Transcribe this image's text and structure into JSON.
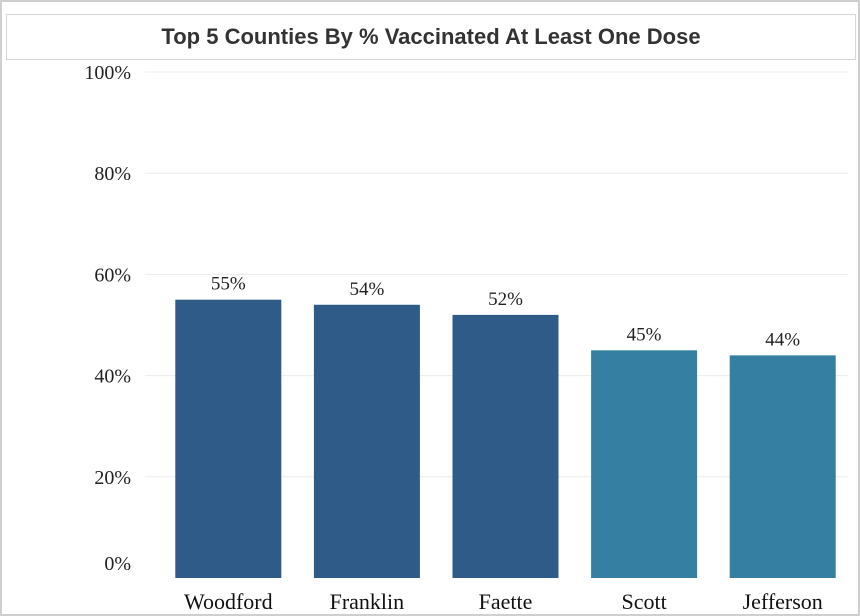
{
  "chart_data": {
    "type": "bar",
    "title": "Top 5 Counties By % Vaccinated At Least One Dose",
    "xlabel": "",
    "ylabel": "",
    "categories": [
      "Woodford",
      "Franklin",
      "Faette",
      "Scott",
      "Jefferson"
    ],
    "values": [
      55,
      54,
      52,
      45,
      44
    ],
    "data_labels": [
      "55%",
      "54%",
      "52%",
      "45%",
      "44%"
    ],
    "bar_colors": [
      "#2e5b88",
      "#2e5b88",
      "#2e5b88",
      "#357fa3",
      "#357fa3"
    ],
    "ylim": [
      0,
      100
    ],
    "yticks": [
      0,
      20,
      40,
      60,
      80,
      100
    ],
    "ytick_labels": [
      "0%",
      "20%",
      "40%",
      "60%",
      "80%",
      "100%"
    ],
    "grid": true,
    "legend": "none"
  }
}
